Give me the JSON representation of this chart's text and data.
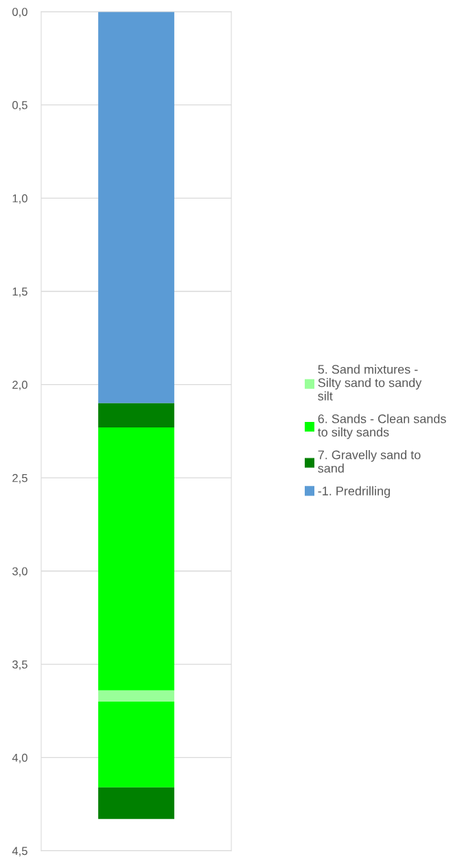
{
  "chart_data": {
    "type": "bar",
    "stacked": true,
    "categories": [
      null
    ],
    "series": [
      {
        "name": "-1. Predrilling",
        "color": "#5b9bd5",
        "values": [
          2.1
        ]
      },
      {
        "name": "7. Gravelly sand to sand",
        "color": "#008000",
        "values": [
          0.13
        ]
      },
      {
        "name": "6. Sands - Clean sands to silty sands",
        "color": "#00ff00",
        "values": [
          1.41
        ]
      },
      {
        "name": "5. Sand mixtures - Silty sand to sandy silt",
        "color": "#99ff99",
        "values": [
          0.06
        ]
      },
      {
        "color": "#00ff00",
        "values": [
          0.46
        ]
      },
      {
        "color": "#008000",
        "values": [
          0.17
        ]
      }
    ],
    "ylim": [
      4.5,
      0
    ],
    "yticks": [
      {
        "value": 0,
        "label": "0,0"
      },
      {
        "value": 0.5,
        "label": "0,5"
      },
      {
        "value": 1,
        "label": "1,0"
      },
      {
        "value": 1.5,
        "label": "1,5"
      },
      {
        "value": 2,
        "label": "2,0"
      },
      {
        "value": 2.5,
        "label": "2,5"
      },
      {
        "value": 3,
        "label": "3,0"
      },
      {
        "value": 3.5,
        "label": "3,5"
      },
      {
        "value": 4,
        "label": "4,0"
      },
      {
        "value": 4.5,
        "label": "4,5"
      }
    ],
    "grid": "y",
    "legend": "right"
  }
}
